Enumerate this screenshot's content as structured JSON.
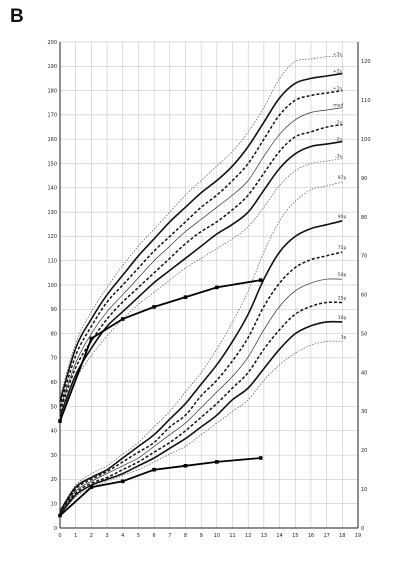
{
  "panel_label": "B",
  "chart_data": {
    "type": "line",
    "title": "",
    "xlabel": "",
    "ylabel": "",
    "grid": true,
    "x_axis": {
      "range": [
        0,
        19
      ],
      "ticks": [
        0,
        1,
        2,
        3,
        4,
        5,
        6,
        7,
        8,
        9,
        10,
        11,
        12,
        13,
        14,
        15,
        16,
        17,
        18,
        19
      ]
    },
    "y_axis_left": {
      "range": [
        0,
        200
      ],
      "ticks": [
        0,
        10,
        20,
        30,
        40,
        50,
        60,
        70,
        80,
        90,
        100,
        110,
        120,
        130,
        140,
        150,
        160,
        170,
        180,
        190,
        200
      ]
    },
    "y_axis_right": {
      "range": [
        0,
        125
      ],
      "ticks": [
        0,
        10,
        20,
        30,
        40,
        50,
        60,
        70,
        80,
        90,
        100,
        110,
        120
      ]
    },
    "reference_curves": {
      "x": [
        0,
        1,
        2,
        3,
        4,
        5,
        6,
        7,
        8,
        9,
        10,
        11,
        12,
        13,
        14,
        15,
        16,
        17,
        18
      ],
      "height": [
        {
          "label": "+3s",
          "style": "dotted",
          "values": [
            54,
            76,
            89,
            99,
            108,
            116,
            123,
            130,
            137,
            143,
            149,
            155,
            163,
            173,
            185,
            192,
            193,
            194,
            194
          ]
        },
        {
          "label": "+2s",
          "style": "solid",
          "values": [
            52,
            74,
            86,
            96,
            104,
            112,
            119,
            126,
            132,
            138,
            143,
            149,
            157,
            167,
            177,
            183,
            185,
            186,
            187
          ]
        },
        {
          "label": "+1s",
          "style": "dashed",
          "values": [
            50,
            71,
            83,
            93,
            100,
            107,
            114,
            120,
            126,
            132,
            137,
            143,
            150,
            160,
            170,
            176,
            178,
            179,
            180
          ]
        },
        {
          "label": "med",
          "style": "thin",
          "values": [
            49,
            68,
            80,
            89,
            96,
            103,
            110,
            116,
            122,
            127,
            132,
            137,
            143,
            153,
            162,
            168,
            171,
            172,
            173
          ]
        },
        {
          "label": "-1s",
          "style": "dashed",
          "values": [
            48,
            66,
            77,
            86,
            93,
            99,
            105,
            111,
            117,
            122,
            126,
            131,
            137,
            146,
            155,
            161,
            163,
            165,
            166
          ]
        },
        {
          "label": "-2s",
          "style": "solid",
          "values": [
            46,
            63,
            74,
            83,
            89,
            95,
            101,
            106,
            111,
            116,
            121,
            125,
            130,
            139,
            148,
            154,
            157,
            158,
            159
          ]
        },
        {
          "label": "-3s",
          "style": "dotted",
          "values": [
            45,
            61,
            71,
            79,
            86,
            92,
            97,
            102,
            107,
            111,
            115,
            119,
            124,
            132,
            141,
            147,
            150,
            151,
            152
          ]
        }
      ],
      "weight": [
        {
          "label": "97p",
          "style": "dotted",
          "values": [
            4.5,
            11,
            14,
            16,
            19,
            22,
            26,
            30,
            35,
            40,
            46,
            53,
            61,
            71,
            79,
            84,
            87,
            88,
            89
          ]
        },
        {
          "label": "90p",
          "style": "solid",
          "values": [
            4.3,
            10.5,
            13,
            15,
            18,
            21,
            24,
            28,
            32,
            37,
            42,
            48,
            55,
            64,
            71,
            75,
            77,
            78,
            79
          ]
        },
        {
          "label": "75p",
          "style": "dashed",
          "values": [
            4.0,
            10,
            12.5,
            14.5,
            17,
            19.5,
            22,
            26,
            29,
            34,
            38,
            43,
            49,
            57,
            63,
            67,
            69,
            70,
            71
          ]
        },
        {
          "label": "50p",
          "style": "thin",
          "values": [
            3.8,
            9.5,
            12,
            14,
            16,
            18,
            21,
            24,
            27,
            31,
            35,
            39,
            44,
            51,
            57,
            61,
            63,
            64,
            64
          ]
        },
        {
          "label": "25p",
          "style": "dashed",
          "values": [
            3.6,
            9,
            11.5,
            13,
            15,
            17,
            19.5,
            22,
            25,
            28.5,
            32,
            36,
            40,
            46,
            51,
            55,
            57,
            58,
            58
          ]
        },
        {
          "label": "10p",
          "style": "solid",
          "values": [
            3.4,
            8.5,
            11,
            12.5,
            14,
            16,
            18,
            20.5,
            23,
            26,
            29,
            33,
            36,
            41,
            46,
            50,
            52,
            53,
            53
          ]
        },
        {
          "label": "3p",
          "style": "dotted",
          "values": [
            3.2,
            8,
            10.5,
            12,
            13.5,
            15,
            17,
            19,
            21,
            24,
            27,
            30,
            33,
            38,
            42,
            45,
            47,
            48,
            48
          ]
        }
      ],
      "height_labels": [
        "+3s.",
        "+2s.",
        "+1s.",
        "med",
        "-1s.",
        "-2s.",
        "-3s."
      ],
      "weight_labels": [
        "97p",
        "90p",
        "75p",
        "50p",
        "25p",
        "10p",
        "3p"
      ]
    },
    "series": [
      {
        "name": "",
        "axis": "left",
        "x": [
          0,
          2,
          4,
          6,
          8,
          10,
          12.8
        ],
        "values": [
          44,
          78,
          86,
          91,
          95,
          99,
          102
        ]
      },
      {
        "name": "",
        "axis": "right",
        "x": [
          0,
          2,
          4,
          6,
          8,
          10,
          12.8
        ],
        "values": [
          3.2,
          10.5,
          12,
          15,
          16,
          17,
          18
        ]
      }
    ]
  }
}
